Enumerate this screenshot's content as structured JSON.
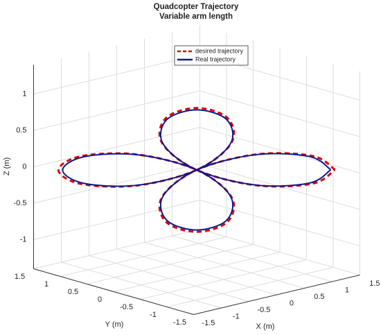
{
  "chart_data": {
    "type": "line3d",
    "title": "Quadcopter Trajectory",
    "subtitle": "Variable arm length",
    "xlabel": "X (m)",
    "ylabel": "Y (m)",
    "zlabel": "Z (m)",
    "xlim": [
      -1.5,
      1.5
    ],
    "ylim": [
      -1.5,
      1.5
    ],
    "zlim": [
      -1.4,
      1.4
    ],
    "xticks": [
      -1.5,
      -1,
      -0.5,
      0,
      0.5,
      1,
      1.5
    ],
    "yticks": [
      -1.5,
      -1,
      -0.5,
      0,
      0.5,
      1,
      1.5
    ],
    "zticks": [
      -1,
      -0.5,
      0,
      0.5,
      1
    ],
    "grid": true,
    "legend": "top",
    "series": [
      {
        "name": "desired trajectory",
        "color": "#dd0000",
        "style": "dashed",
        "x": [
          1.368,
          1.145,
          0.592,
          0,
          -0.342,
          -0.306,
          0,
          0.306,
          0.342,
          0,
          -0.592,
          -1.145,
          -1.368,
          -1.145,
          -0.592,
          0,
          0.342,
          0.306,
          0,
          -0.306,
          -0.342,
          0,
          0.592,
          1.145,
          1.368
        ],
        "y": [
          -1.17,
          -0.979,
          -0.507,
          0,
          0.293,
          0.262,
          0,
          -0.262,
          -0.293,
          0,
          0.507,
          0.979,
          1.17,
          0.979,
          0.507,
          0,
          -0.293,
          -0.262,
          0,
          0.262,
          0.293,
          0,
          -0.507,
          -0.979,
          -1.17
        ],
        "z": [
          0,
          0.19,
          0.213,
          0,
          -0.368,
          -0.711,
          -0.85,
          -0.711,
          -0.368,
          0,
          0.213,
          0.19,
          0,
          -0.19,
          -0.213,
          0,
          0.368,
          0.711,
          0.85,
          0.711,
          0.368,
          0,
          -0.213,
          -0.19,
          0
        ]
      },
      {
        "name": "Real trajectory",
        "color": "#0c1a8c",
        "style": "solid",
        "x": [
          1.327,
          1.111,
          0.574,
          0,
          -0.332,
          -0.297,
          0,
          0.297,
          0.332,
          0,
          -0.574,
          -1.111,
          -1.327,
          -1.111,
          -0.574,
          0,
          0.332,
          0.297,
          0,
          -0.297,
          -0.332,
          0,
          0.574,
          1.111,
          1.327
        ],
        "y": [
          -1.135,
          -0.95,
          -0.492,
          0,
          0.284,
          0.254,
          0,
          -0.254,
          -0.284,
          0,
          0.492,
          0.95,
          1.135,
          0.95,
          0.492,
          0,
          -0.284,
          -0.254,
          0,
          0.254,
          0.284,
          0,
          -0.492,
          -0.95,
          -1.135
        ],
        "z": [
          0,
          0.184,
          0.207,
          0,
          -0.357,
          -0.69,
          -0.825,
          -0.69,
          -0.357,
          0,
          0.207,
          0.184,
          0,
          -0.184,
          -0.207,
          0,
          0.357,
          0.69,
          0.825,
          0.69,
          0.357,
          0,
          -0.207,
          -0.184,
          0
        ]
      }
    ]
  }
}
